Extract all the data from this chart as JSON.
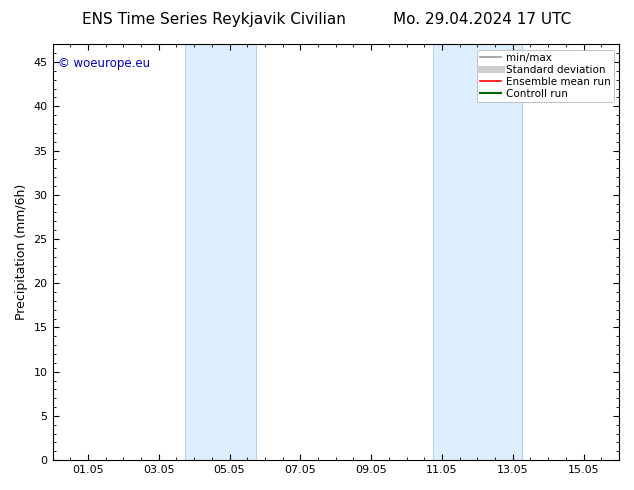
{
  "title_left": "ENS Time Series Reykjavik Civilian",
  "title_right": "Mo. 29.04.2024 17 UTC",
  "ylabel": "Precipitation (mm/6h)",
  "watermark": "© woeurope.eu",
  "watermark_color": "#0000cc",
  "xmin": 0,
  "xmax": 16,
  "ymin": 0,
  "ymax": 47,
  "yticks": [
    0,
    5,
    10,
    15,
    20,
    25,
    30,
    35,
    40,
    45
  ],
  "xtick_labels": [
    "01.05",
    "03.05",
    "05.05",
    "07.05",
    "09.05",
    "11.05",
    "13.05",
    "15.05"
  ],
  "xtick_positions": [
    1.0,
    3.0,
    5.0,
    7.0,
    9.0,
    11.0,
    13.0,
    15.0
  ],
  "shaded_bands": [
    {
      "xmin": 3.75,
      "xmax": 5.75
    },
    {
      "xmin": 10.75,
      "xmax": 13.25
    }
  ],
  "band_color": "#ddeeff",
  "band_edge_color": "#b8d0e8",
  "background_color": "#ffffff",
  "legend_items": [
    {
      "label": "min/max",
      "color": "#999999",
      "lw": 1.2
    },
    {
      "label": "Standard deviation",
      "color": "#cccccc",
      "lw": 5
    },
    {
      "label": "Ensemble mean run",
      "color": "#ff0000",
      "lw": 1.2
    },
    {
      "label": "Controll run",
      "color": "#006600",
      "lw": 1.5
    }
  ],
  "title_fontsize": 11,
  "ylabel_fontsize": 9,
  "tick_fontsize": 8,
  "legend_fontsize": 7.5,
  "fig_width": 6.34,
  "fig_height": 4.9,
  "dpi": 100
}
